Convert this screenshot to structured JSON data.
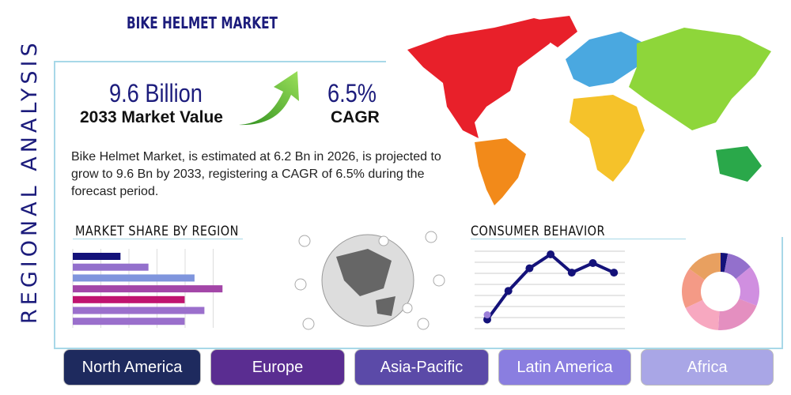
{
  "side_title": "REGIONAL ANALYSIS",
  "title": "BIKE HELMET MARKET",
  "market_value": {
    "value": "9.6 Billion",
    "label": "2033 Market Value"
  },
  "cagr": {
    "value": "6.5%",
    "label": "CAGR"
  },
  "description": "Bike Helmet Market, is estimated at 6.2 Bn in 2026, is projected to grow to 9.6 Bn by 2033, registering a CAGR of 6.5% during the forecast period.",
  "sections": {
    "market_share": "MARKET SHARE BY REGION",
    "consumer": "CONSUMER BEHAVIOR"
  },
  "bars": [
    {
      "v": 0.29,
      "c": "#14127a"
    },
    {
      "v": 0.46,
      "c": "#9370cc"
    },
    {
      "v": 0.74,
      "c": "#7f95dd"
    },
    {
      "v": 0.91,
      "c": "#a346a8"
    },
    {
      "v": 0.68,
      "c": "#c0136f"
    },
    {
      "v": 0.8,
      "c": "#9b6fcc"
    },
    {
      "v": 0.68,
      "c": "#9a6fcc"
    }
  ],
  "line": [
    0.05,
    0.38,
    0.64,
    0.8,
    0.59,
    0.7,
    0.59
  ],
  "donut": [
    {
      "v": 3,
      "c": "#14127a"
    },
    {
      "v": 11,
      "c": "#9370cc"
    },
    {
      "v": 17,
      "c": "#d08fe0"
    },
    {
      "v": 20,
      "c": "#e48fc0"
    },
    {
      "v": 17,
      "c": "#f7a8c0"
    },
    {
      "v": 17,
      "c": "#f49a86"
    },
    {
      "v": 15,
      "c": "#e8a060"
    }
  ],
  "regions": [
    {
      "label": "North America",
      "color": "#1e2a5e"
    },
    {
      "label": "Europe",
      "color": "#5a2d91"
    },
    {
      "label": "Asia-Pacific",
      "color": "#5b4aa8"
    },
    {
      "label": "Latin America",
      "color": "#8a7ee0"
    },
    {
      "label": "Africa",
      "color": "#a9a6e6"
    }
  ]
}
